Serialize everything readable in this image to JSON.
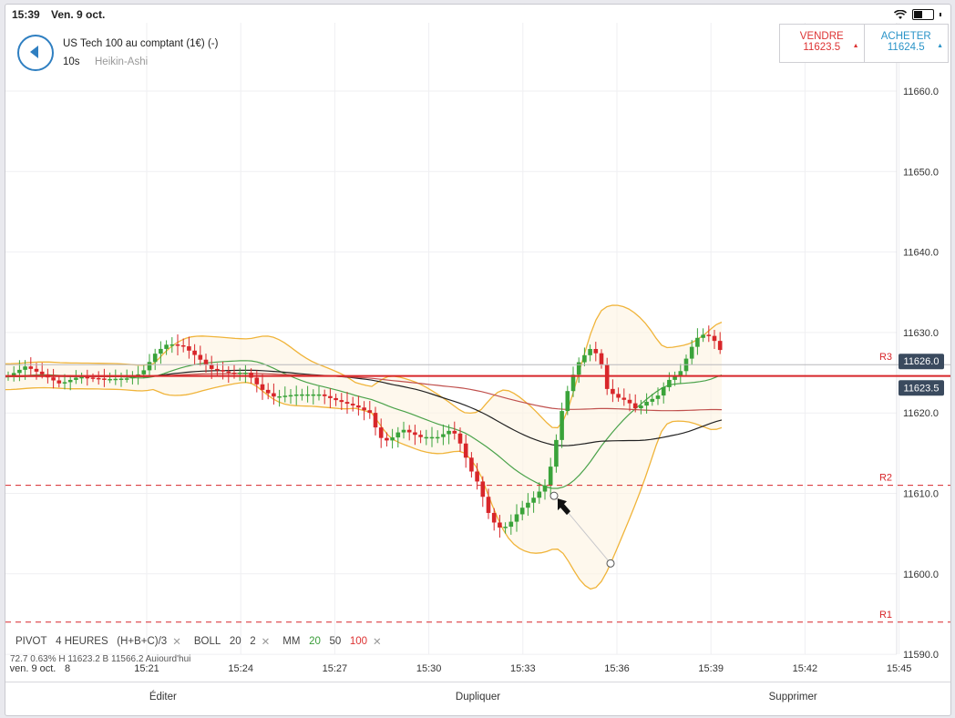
{
  "status": {
    "time": "15:39",
    "date": "Ven. 9 oct."
  },
  "header": {
    "instrument": "US Tech 100 au comptant (1€) (-)",
    "interval": "10s",
    "chart_type": "Heikin-Ashi"
  },
  "trade": {
    "sell_label": "VENDRE",
    "sell_price": "11623.5",
    "buy_label": "ACHETER",
    "buy_price": "11624.5"
  },
  "y_axis": {
    "ticks": [
      "11660.0",
      "11650.0",
      "11640.0",
      "11630.0",
      "11620.0",
      "11610.0",
      "11600.0",
      "11590.0"
    ]
  },
  "x_axis": {
    "ticks": [
      "ven. 9 oct.",
      "8",
      "15:21",
      "15:24",
      "15:27",
      "15:30",
      "15:33",
      "15:36",
      "15:39",
      "15:42",
      "15:45"
    ]
  },
  "price_tags": {
    "current": "11626.0",
    "bid": "11623.5"
  },
  "pivots": {
    "r1": "R1",
    "r2": "R2",
    "r3": "R3"
  },
  "indicators": {
    "pivot": {
      "name": "PIVOT",
      "period": "4 HEURES",
      "formula": "(H+B+C)/3"
    },
    "boll": {
      "name": "BOLL",
      "p1": "20",
      "p2": "2"
    },
    "mm": {
      "name": "MM",
      "v1": "20",
      "v2": "50",
      "v3": "100"
    },
    "close": "✕"
  },
  "partial_row": "72.7 0.63% H 11623.2 B 11566.2 Aujourd'hui",
  "bottom": {
    "edit": "Éditer",
    "duplicate": "Dupliquer",
    "delete": "Supprimer"
  },
  "colors": {
    "up": "#3aa33a",
    "down": "#d8262a",
    "bollinger": "#f0b43a",
    "ma20": "#4aa24a",
    "ma50": "#222222",
    "ma100": "#c0504d",
    "accent": "#2f7fc1"
  }
}
